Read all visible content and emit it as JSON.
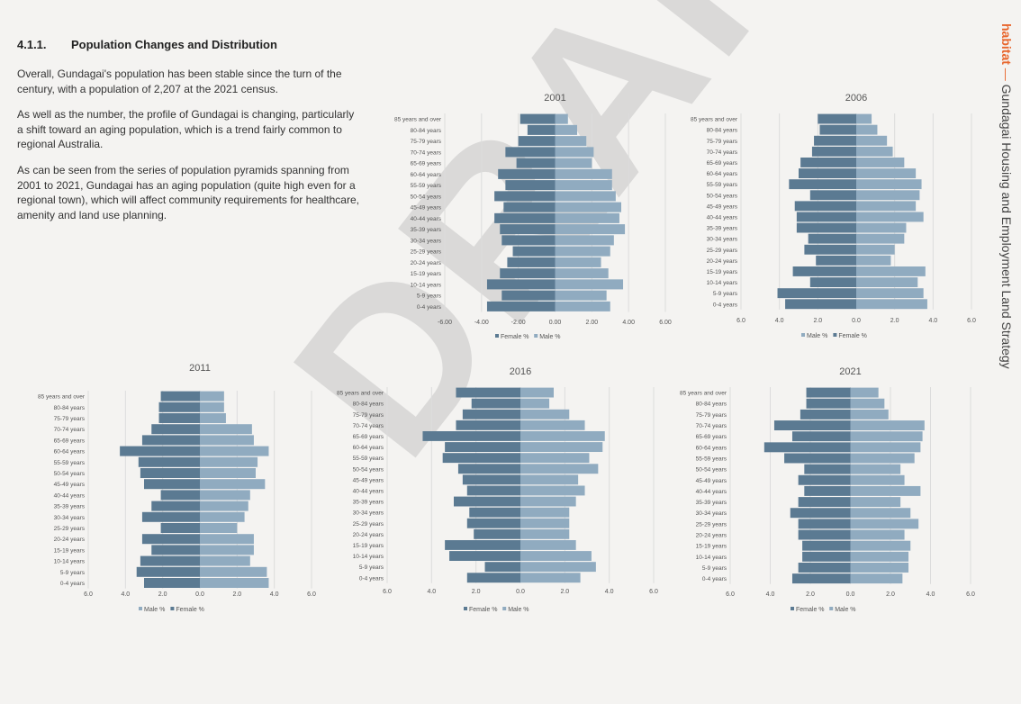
{
  "heading": {
    "number": "4.1.1.",
    "title": "Population Changes and Distribution"
  },
  "paragraphs": [
    "Overall, Gundagai's population has been stable since the turn of the century, with a population of 2,207 at the 2021 census.",
    "As well as the number, the profile of Gundagai is changing, particularly a shift toward an aging population, which is a trend fairly common to regional Australia.",
    "As can be seen from the series of population pyramids spanning from 2001 to 2021, Gundagai has an aging population (quite high even for a regional town), which will affect community requirements for healthcare, amenity and land use planning."
  ],
  "sidebar": {
    "brand": "habitat",
    "dash": "—",
    "title": "Gundagai Housing and Employment Land Strategy"
  },
  "watermark": "DRAFT",
  "colors": {
    "dark": "#5b7a92",
    "light": "#90abc0",
    "accent": "#e8662d"
  },
  "chart_data": [
    {
      "type": "bar",
      "title": "2001",
      "categories": [
        "85 years and over",
        "80-84 years",
        "75-79 years",
        "70-74 years",
        "65-69 years",
        "60-64 years",
        "55-59 years",
        "50-54 years",
        "45-49 years",
        "40-44 years",
        "35-39 years",
        "30-34 years",
        "25-29 years",
        "20-24 years",
        "15-19 years",
        "10-14 years",
        "5-9 years",
        "0-4 years"
      ],
      "ticks": [
        "-6.00",
        "-4.00",
        "-2.00",
        "0.00",
        "2.00",
        "4.00",
        "6.00"
      ],
      "xlim": [
        -6,
        6
      ],
      "left_series": {
        "name": "Female %",
        "values": [
          1.9,
          1.5,
          2.0,
          2.7,
          2.1,
          3.1,
          2.7,
          3.3,
          2.8,
          3.3,
          3.0,
          2.9,
          2.3,
          2.6,
          3.0,
          3.7,
          2.9,
          3.7
        ]
      },
      "right_series": {
        "name": "Male %",
        "values": [
          0.7,
          1.2,
          1.7,
          2.1,
          2.0,
          3.1,
          3.1,
          3.3,
          3.6,
          3.5,
          3.8,
          3.2,
          3.0,
          2.5,
          2.9,
          3.7,
          2.8,
          3.0
        ]
      },
      "legend": [
        "Female %",
        "Male %"
      ]
    },
    {
      "type": "bar",
      "title": "2006",
      "categories": [
        "85 years and over",
        "80-84 years",
        "75-79 years",
        "70-74 years",
        "65-69 years",
        "60-64 years",
        "55-59 years",
        "50-54 years",
        "45-49 years",
        "40-44 years",
        "35-39 years",
        "30-34 years",
        "25-29 years",
        "20-24 years",
        "15-19 years",
        "10-14 years",
        "5-9 years",
        "0-4 years"
      ],
      "ticks": [
        "6.0",
        "4.0",
        "2.0",
        "0.0",
        "2.0",
        "4.0",
        "6.0"
      ],
      "xlim": [
        -6,
        6
      ],
      "left_series": {
        "name": "Female %",
        "values": [
          2.0,
          1.9,
          2.2,
          2.3,
          2.9,
          3.0,
          3.5,
          2.4,
          3.2,
          3.1,
          3.1,
          2.5,
          2.7,
          2.1,
          3.3,
          2.4,
          4.1,
          3.7
        ]
      },
      "right_series": {
        "name": "Male %",
        "values": [
          0.8,
          1.1,
          1.6,
          1.9,
          2.5,
          3.1,
          3.4,
          3.3,
          3.1,
          3.5,
          2.6,
          2.5,
          2.0,
          1.8,
          3.6,
          3.2,
          3.5,
          3.7
        ]
      },
      "legend": [
        "Male %",
        "Female %"
      ]
    },
    {
      "type": "bar",
      "title": "2011",
      "categories": [
        "85 years and over",
        "80-84 years",
        "75-79 years",
        "70-74 years",
        "65-69 years",
        "60-64 years",
        "55-59 years",
        "50-54 years",
        "45-49 years",
        "40-44 years",
        "35-39 years",
        "30-34 years",
        "25-29 years",
        "20-24 years",
        "15-19 years",
        "10-14 years",
        "5-9 years",
        "0-4 years"
      ],
      "ticks": [
        "6.0",
        "4.0",
        "2.0",
        "0.0",
        "2.0",
        "4.0",
        "6.0"
      ],
      "xlim": [
        -6,
        6
      ],
      "left_series": {
        "name": "Female %",
        "values": [
          2.1,
          2.2,
          2.2,
          2.6,
          3.1,
          4.3,
          3.3,
          3.2,
          3.0,
          2.1,
          2.6,
          3.1,
          2.1,
          3.1,
          2.6,
          3.2,
          3.4,
          3.0
        ]
      },
      "right_series": {
        "name": "Male %",
        "values": [
          1.3,
          1.3,
          1.4,
          2.8,
          2.9,
          3.7,
          3.1,
          3.0,
          3.5,
          2.7,
          2.6,
          2.4,
          2.0,
          2.9,
          2.9,
          2.7,
          3.6,
          3.7
        ]
      },
      "legend": [
        "Male %",
        "Female %"
      ]
    },
    {
      "type": "bar",
      "title": "2016",
      "categories": [
        "85 years and over",
        "80-84 years",
        "75-79 years",
        "70-74 years",
        "65-69 years",
        "60-64 years",
        "55-59 years",
        "50-54 years",
        "45-49 years",
        "40-44 years",
        "35-39 years",
        "30-34 years",
        "25-29 years",
        "20-24 years",
        "15-19 years",
        "10-14 years",
        "5-9 years",
        "0-4 years"
      ],
      "ticks": [
        "6.0",
        "4.0",
        "2.0",
        "0.0",
        "2.0",
        "4.0",
        "6.0"
      ],
      "xlim": [
        -6,
        6
      ],
      "left_series": {
        "name": "Female %",
        "values": [
          2.9,
          2.2,
          2.6,
          2.9,
          4.4,
          3.4,
          3.5,
          2.8,
          2.6,
          2.4,
          3.0,
          2.3,
          2.4,
          2.1,
          3.4,
          3.2,
          1.6,
          2.4
        ]
      },
      "right_series": {
        "name": "Male %",
        "values": [
          1.5,
          1.3,
          2.2,
          2.9,
          3.8,
          3.7,
          3.1,
          3.5,
          2.6,
          2.9,
          2.5,
          2.2,
          2.2,
          2.2,
          2.5,
          3.2,
          3.4,
          2.7
        ]
      },
      "legend": [
        "Female %",
        "Male %"
      ]
    },
    {
      "type": "bar",
      "title": "2021",
      "categories": [
        "85 years and over",
        "80-84 years",
        "75-79 years",
        "70-74 years",
        "65-69 years",
        "60-64 years",
        "55-59 years",
        "50-54 years",
        "45-49 years",
        "40-44 years",
        "35-39 years",
        "30-34 years",
        "25-29 years",
        "20-24 years",
        "15-19 years",
        "10-14 years",
        "5-9 years",
        "0-4 years"
      ],
      "ticks": [
        "6.0",
        "4.0",
        "2.0",
        "0.0",
        "2.0",
        "4.0",
        "6.0"
      ],
      "xlim": [
        -6,
        6
      ],
      "left_series": {
        "name": "Female %",
        "values": [
          2.2,
          2.2,
          2.5,
          3.8,
          2.9,
          4.3,
          3.3,
          2.3,
          2.6,
          2.3,
          2.6,
          3.0,
          2.6,
          2.6,
          2.4,
          2.4,
          2.6,
          2.9
        ]
      },
      "right_series": {
        "name": "Male %",
        "values": [
          1.4,
          1.7,
          1.9,
          3.7,
          3.6,
          3.5,
          3.2,
          2.5,
          2.7,
          3.5,
          2.5,
          3.0,
          3.4,
          2.7,
          3.0,
          2.9,
          2.9,
          2.6
        ]
      },
      "legend": [
        "Female %",
        "Male %"
      ]
    }
  ]
}
